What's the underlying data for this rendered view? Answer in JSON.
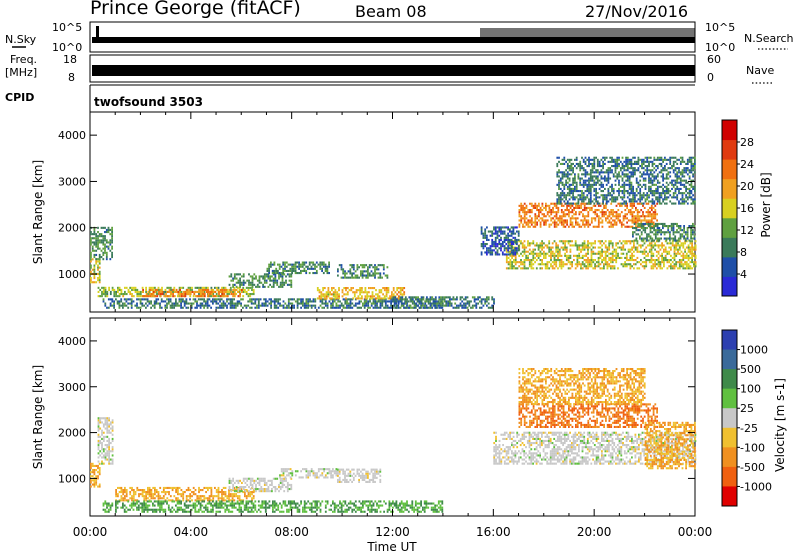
{
  "header": {
    "station": "Prince George (fitACF)",
    "beam": "Beam 08",
    "date": "27/Nov/2016"
  },
  "strips": {
    "nsky": {
      "label": "N.Sky",
      "ticks": [
        "10^5",
        "10^0"
      ]
    },
    "nsearch": {
      "label": "N.Search",
      "ticks": [
        "10^5",
        "10^0"
      ]
    },
    "freq": {
      "label_line1": "Freq.",
      "label_line2": "[MHz]",
      "ticks": [
        "18",
        "8"
      ]
    },
    "nave": {
      "label": "Nave",
      "ticks": [
        "60",
        "0"
      ]
    },
    "cpid": {
      "label": "CPID",
      "value": "twofsound 3503"
    }
  },
  "colors": {
    "power": [
      "#2a2ad6",
      "#1f4fa8",
      "#3a7a5a",
      "#5fa040",
      "#d8d020",
      "#f0a020",
      "#f07010",
      "#e03a10",
      "#d00000"
    ],
    "velocity": [
      "#2c3fb0",
      "#3a6a9a",
      "#3f8a4a",
      "#60c040",
      "#c8c8c8",
      "#f0c030",
      "#f09020",
      "#f06010",
      "#e00000"
    ]
  },
  "chart_data": [
    {
      "type": "heatmap",
      "name": "power",
      "xlabel": "Time UT",
      "ylabel": "Slant Range [km]",
      "x_ticks": [
        "00:00",
        "04:00",
        "08:00",
        "12:00",
        "16:00",
        "20:00",
        "00:00"
      ],
      "xlim_hours": [
        0,
        24
      ],
      "ylim": [
        180,
        4500
      ],
      "y_ticks": [
        1000,
        2000,
        3000,
        4000
      ],
      "colorbar": {
        "label": "Power [dB]",
        "range": [
          0,
          32
        ],
        "ticks": [
          4,
          8,
          12,
          16,
          20,
          24,
          28
        ]
      },
      "regions": [
        {
          "t": [
            0.0,
            0.4
          ],
          "r": [
            800,
            1300
          ],
          "v": 16
        },
        {
          "t": [
            0.0,
            0.9
          ],
          "r": [
            1300,
            2000
          ],
          "v": 10
        },
        {
          "t": [
            0.3,
            6.5
          ],
          "r": [
            500,
            700
          ],
          "v": 14
        },
        {
          "t": [
            2.0,
            6.0
          ],
          "r": [
            500,
            650
          ],
          "v": 22
        },
        {
          "t": [
            0.5,
            14.0
          ],
          "r": [
            250,
            450
          ],
          "v": 8
        },
        {
          "t": [
            5.5,
            8.0
          ],
          "r": [
            700,
            1000
          ],
          "v": 10
        },
        {
          "t": [
            7.0,
            9.5
          ],
          "r": [
            1000,
            1250
          ],
          "v": 10
        },
        {
          "t": [
            9.8,
            11.8
          ],
          "r": [
            900,
            1200
          ],
          "v": 10
        },
        {
          "t": [
            9.0,
            12.5
          ],
          "r": [
            450,
            700
          ],
          "v": 18
        },
        {
          "t": [
            12.0,
            16.0
          ],
          "r": [
            250,
            500
          ],
          "v": 8
        },
        {
          "t": [
            16.5,
            24.0
          ],
          "r": [
            1100,
            1700
          ],
          "v": 16
        },
        {
          "t": [
            17.0,
            22.5
          ],
          "r": [
            2000,
            2500
          ],
          "v": 22
        },
        {
          "t": [
            18.5,
            24.0
          ],
          "r": [
            2500,
            3500
          ],
          "v": 8
        },
        {
          "t": [
            21.5,
            24.0
          ],
          "r": [
            1700,
            2100
          ],
          "v": 10
        },
        {
          "t": [
            15.5,
            17.0
          ],
          "r": [
            1400,
            2000
          ],
          "v": 6
        }
      ]
    },
    {
      "type": "heatmap",
      "name": "velocity",
      "xlabel": "Time UT",
      "ylabel": "Slant Range [km]",
      "x_ticks": [
        "00:00",
        "04:00",
        "08:00",
        "12:00",
        "16:00",
        "20:00",
        "00:00"
      ],
      "xlim_hours": [
        0,
        24
      ],
      "ylim": [
        180,
        4500
      ],
      "y_ticks": [
        1000,
        2000,
        3000,
        4000
      ],
      "colorbar": {
        "label": "Velocity [m s-1]",
        "ticks": [
          "1000",
          "500",
          "100",
          "25",
          "-25",
          "-100",
          "-500",
          "-1000"
        ]
      },
      "regions": [
        {
          "t": [
            0.0,
            0.4
          ],
          "r": [
            800,
            1300
          ],
          "v": -100
        },
        {
          "t": [
            0.3,
            0.9
          ],
          "r": [
            1300,
            2300
          ],
          "v": 0
        },
        {
          "t": [
            1.0,
            6.5
          ],
          "r": [
            500,
            800
          ],
          "v": -100
        },
        {
          "t": [
            0.5,
            14.0
          ],
          "r": [
            250,
            500
          ],
          "v": 100
        },
        {
          "t": [
            5.5,
            8.0
          ],
          "r": [
            700,
            1000
          ],
          "v": 0
        },
        {
          "t": [
            7.5,
            9.8
          ],
          "r": [
            1000,
            1200
          ],
          "v": 0
        },
        {
          "t": [
            9.8,
            11.5
          ],
          "r": [
            900,
            1200
          ],
          "v": 0
        },
        {
          "t": [
            16.0,
            24.0
          ],
          "r": [
            1300,
            2000
          ],
          "v": 0
        },
        {
          "t": [
            17.0,
            22.5
          ],
          "r": [
            2100,
            2600
          ],
          "v": -500
        },
        {
          "t": [
            17.0,
            22.0
          ],
          "r": [
            2600,
            3400
          ],
          "v": -100
        },
        {
          "t": [
            22.0,
            24.0
          ],
          "r": [
            1200,
            2200
          ],
          "v": -100
        }
      ]
    }
  ]
}
